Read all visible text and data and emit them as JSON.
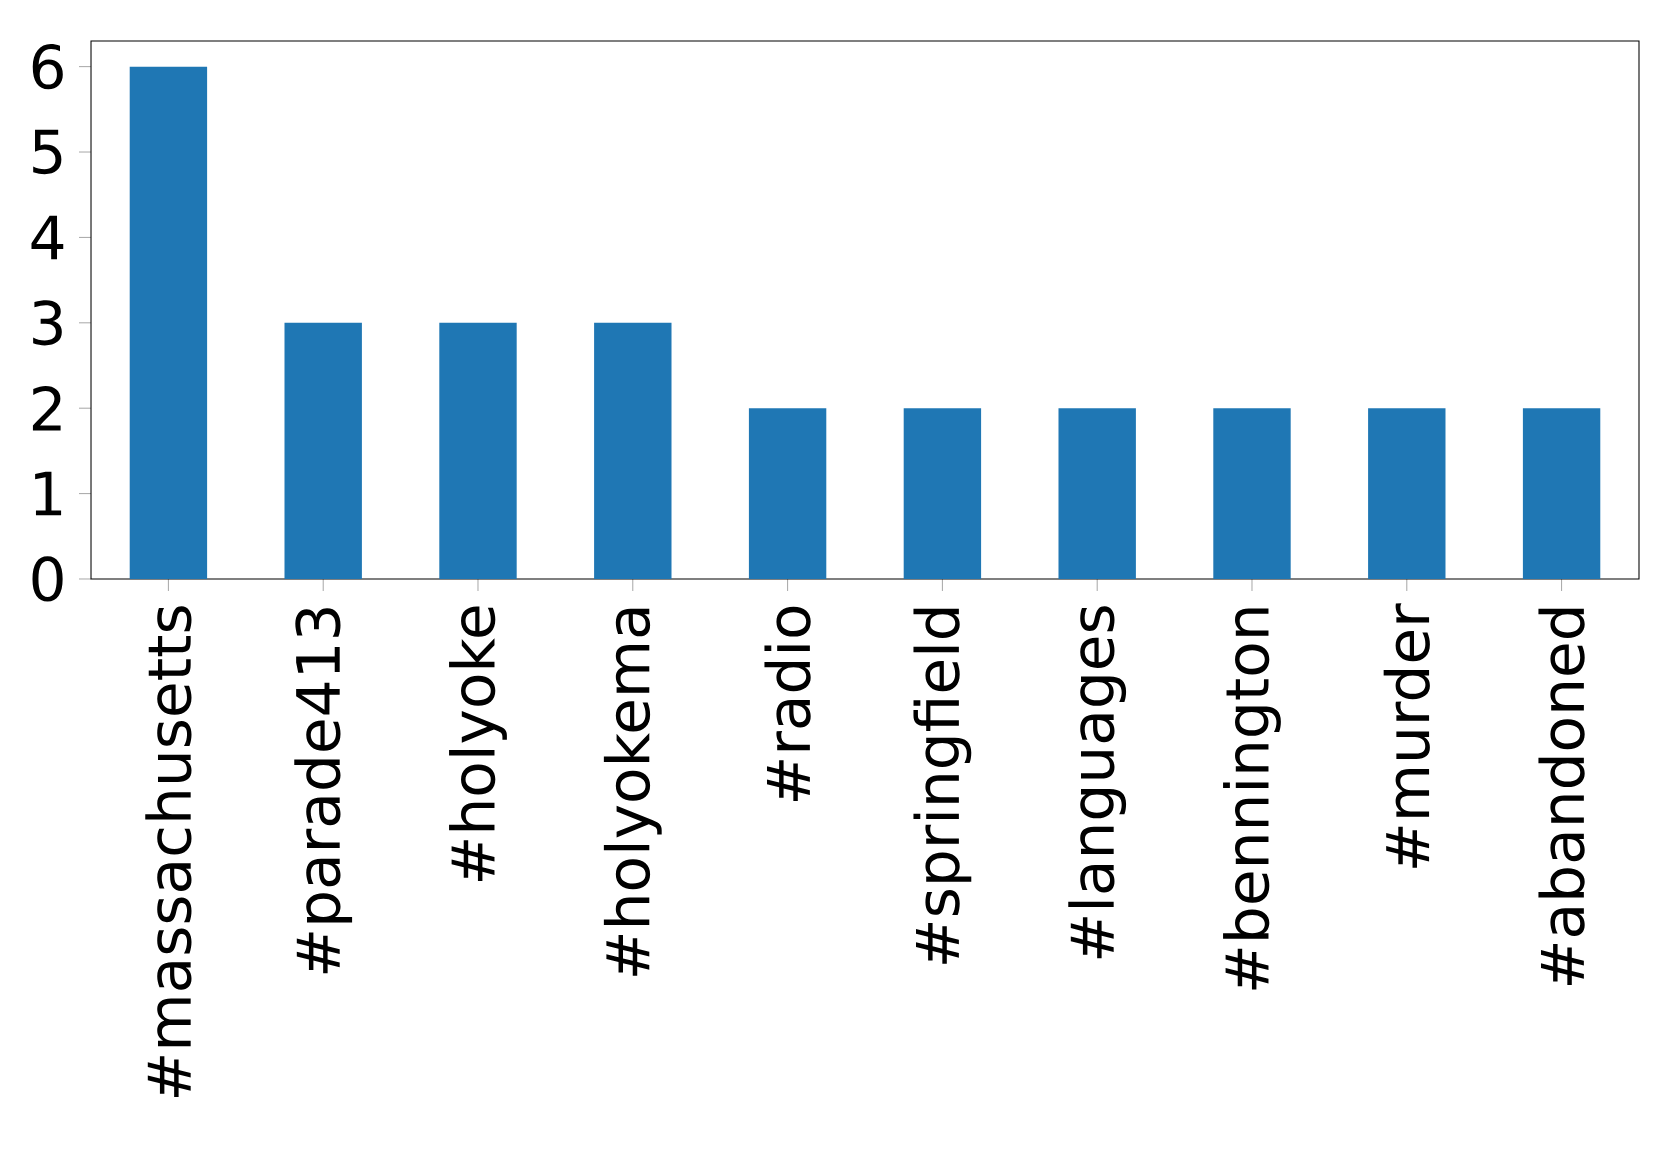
{
  "chart_data": {
    "type": "bar",
    "categories": [
      "#massachusetts",
      "#parade413",
      "#holyoke",
      "#holyokema",
      "#radio",
      "#springfield",
      "#languages",
      "#bennington",
      "#murder",
      "#abandoned"
    ],
    "values": [
      6,
      3,
      3,
      3,
      2,
      2,
      2,
      2,
      2,
      2
    ],
    "color": "#1f77b4",
    "ylim": [
      0,
      6.3
    ],
    "yticks": [
      0,
      1,
      2,
      3,
      4,
      5,
      6
    ],
    "grid": false
  }
}
